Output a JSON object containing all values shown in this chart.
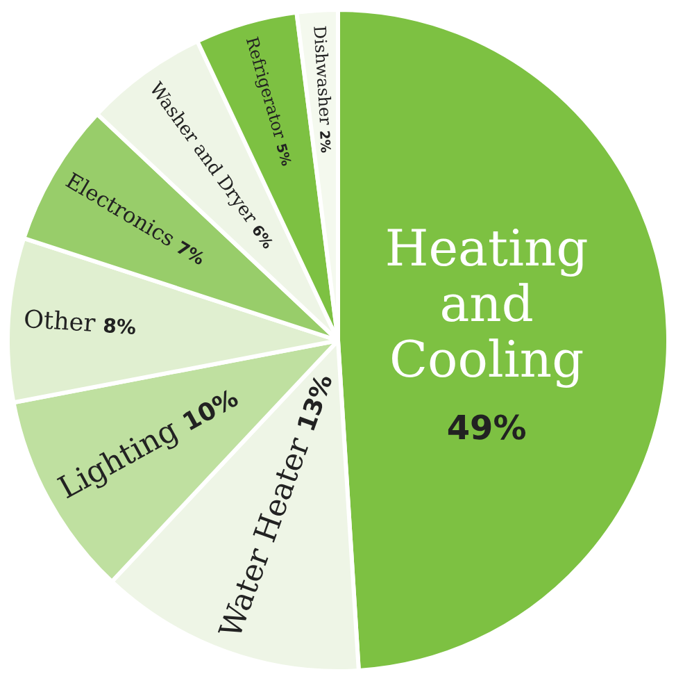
{
  "chart_data": {
    "type": "pie",
    "categories": [
      "Heating and Cooling",
      "Water Heater",
      "Lighting",
      "Other",
      "Electronics",
      "Washer and Dryer",
      "Refrigerator",
      "Dishwasher"
    ],
    "values": [
      49,
      13,
      10,
      8,
      7,
      6,
      5,
      2
    ],
    "colors": [
      "#7dc142",
      "#eef5e6",
      "#bfe0a0",
      "#e0efd0",
      "#98cd6a",
      "#eef5e6",
      "#7dc142",
      "#f4f9ee"
    ],
    "value_labels": [
      "49%",
      "13%",
      "10%",
      "8%",
      "7%",
      "6%",
      "5%",
      "2%"
    ]
  }
}
